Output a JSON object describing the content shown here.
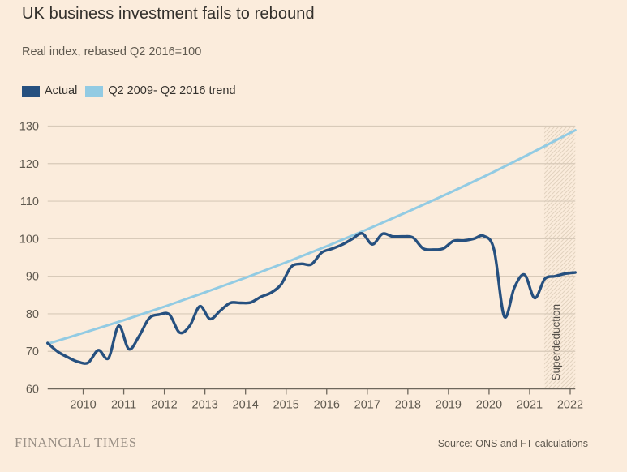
{
  "header": {
    "title": "UK business investment fails to rebound",
    "subtitle": "Real index, rebased Q2 2016=100"
  },
  "legend": {
    "items": [
      {
        "label": "Actual",
        "color": "#26507f"
      },
      {
        "label": "Q2 2009- Q2 2016 trend",
        "color": "#92cbe3"
      }
    ]
  },
  "footer": {
    "brand": "FINANCIAL TIMES",
    "source": "Source: ONS and FT calculations"
  },
  "colors": {
    "background": "#fbecdc",
    "actual_line": "#26507f",
    "trend_line": "#92cbe3",
    "gridline": "#d8cab9",
    "baseline": "#6e675c",
    "tick_text": "#5f594f",
    "hatch_line": "#e2d2bf",
    "annotation_text": "#55504a"
  },
  "chart_data": {
    "type": "line",
    "title": "UK business investment fails to rebound",
    "subtitle": "Real index, rebased Q2 2016=100",
    "xlabel": "",
    "ylabel": "",
    "xlim": [
      2009.125,
      2022.125
    ],
    "ylim": [
      60,
      130
    ],
    "x_ticks": [
      2010,
      2011,
      2012,
      2013,
      2014,
      2015,
      2016,
      2017,
      2018,
      2019,
      2020,
      2021,
      2022
    ],
    "y_ticks": [
      60,
      70,
      80,
      90,
      100,
      110,
      120,
      130
    ],
    "grid": true,
    "legend_position": "top-left",
    "series": [
      {
        "name": "Actual",
        "color": "#26507f",
        "x": [
          2009.125,
          2009.375,
          2009.625,
          2009.875,
          2010.125,
          2010.375,
          2010.625,
          2010.875,
          2011.125,
          2011.375,
          2011.625,
          2011.875,
          2012.125,
          2012.375,
          2012.625,
          2012.875,
          2013.125,
          2013.375,
          2013.625,
          2013.875,
          2014.125,
          2014.375,
          2014.625,
          2014.875,
          2015.125,
          2015.375,
          2015.625,
          2015.875,
          2016.125,
          2016.375,
          2016.625,
          2016.875,
          2017.125,
          2017.375,
          2017.625,
          2017.875,
          2018.125,
          2018.375,
          2018.625,
          2018.875,
          2019.125,
          2019.375,
          2019.625,
          2019.875,
          2020.125,
          2020.375,
          2020.625,
          2020.875,
          2021.125,
          2021.375,
          2021.625,
          2021.875,
          2022.125
        ],
        "values": [
          72.2,
          69.9,
          68.4,
          67.2,
          67.0,
          70.3,
          68.2,
          76.8,
          70.6,
          74.0,
          78.8,
          79.8,
          79.8,
          75.0,
          76.8,
          82.0,
          78.6,
          80.8,
          82.9,
          82.9,
          83.0,
          84.5,
          85.6,
          87.8,
          92.5,
          93.3,
          93.2,
          96.3,
          97.3,
          98.4,
          99.9,
          101.4,
          98.5,
          101.3,
          100.6,
          100.6,
          100.3,
          97.4,
          97.1,
          97.4,
          99.4,
          99.5,
          100.0,
          100.7,
          97.0,
          79.3,
          87.0,
          90.4,
          84.2,
          89.3,
          90.0,
          90.7,
          91.0
        ]
      },
      {
        "name": "Q2 2009- Q2 2016 trend",
        "color": "#92cbe3",
        "x": [
          2009.125,
          2010,
          2011,
          2012,
          2013,
          2014,
          2015,
          2016,
          2017,
          2018,
          2019,
          2020,
          2021,
          2022,
          2022.125
        ],
        "values": [
          72.0,
          74.9,
          78.3,
          81.9,
          85.7,
          89.6,
          93.7,
          98.0,
          102.5,
          107.2,
          112.1,
          117.2,
          122.6,
          128.2,
          128.9
        ]
      }
    ],
    "annotation": {
      "label": "Superdeduction",
      "region_start": 2021.36,
      "region_end": 2022.125
    }
  }
}
